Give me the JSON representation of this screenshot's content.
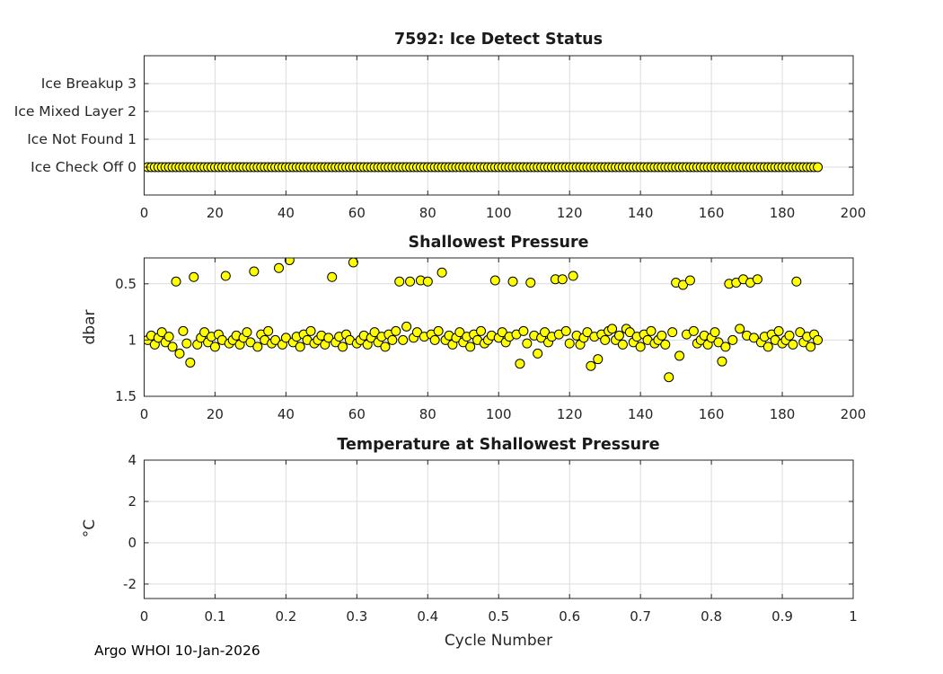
{
  "figure": {
    "background": "#ffffff",
    "footer": "Argo WHOI 10-Jan-2026",
    "marker_fill": "#ffff00",
    "marker_edge": "#000000",
    "grid_color": "#dcdcdc",
    "axis_color": "#262626"
  },
  "chart_data": [
    {
      "id": "ice-detect-status",
      "type": "scatter",
      "title": "7592: Ice Detect Status",
      "xlabel": "",
      "ylabel": "",
      "xlim": [
        0,
        200
      ],
      "xticks": [
        0,
        20,
        40,
        60,
        80,
        100,
        120,
        140,
        160,
        180,
        200
      ],
      "xtick_labels": [
        "0",
        "20",
        "40",
        "60",
        "80",
        "100",
        "120",
        "140",
        "160",
        "180",
        "200"
      ],
      "ylim": [
        -1,
        4
      ],
      "y_reversed": false,
      "yticks": [
        0,
        1,
        2,
        3
      ],
      "ytick_labels": [
        "Ice Check Off 0",
        "Ice Not Found 1",
        "Ice Mixed Layer 2",
        "Ice Breakup 3"
      ],
      "ytick_label_style": "category",
      "grid": true,
      "marker": {
        "shape": "circle",
        "fill": "#ffff00",
        "edge": "#000000",
        "diameter": 11
      },
      "series": [
        {
          "name": "ice_detect_status",
          "x_start": 1,
          "x_step": 1,
          "count": 190,
          "y_const": 0
        }
      ]
    },
    {
      "id": "shallowest-pressure",
      "type": "scatter",
      "title": "Shallowest Pressure",
      "xlabel": "",
      "ylabel": "dbar",
      "xlim": [
        0,
        200
      ],
      "xticks": [
        0,
        20,
        40,
        60,
        80,
        100,
        120,
        140,
        160,
        180,
        200
      ],
      "xtick_labels": [
        "0",
        "20",
        "40",
        "60",
        "80",
        "100",
        "120",
        "140",
        "160",
        "180",
        "200"
      ],
      "ylim": [
        0.27,
        1.5
      ],
      "y_reversed": true,
      "yticks": [
        0.5,
        1,
        1.5
      ],
      "ytick_labels": [
        "0.5",
        "1",
        "1.5"
      ],
      "ytick_label_style": "numeric",
      "grid": true,
      "marker": {
        "shape": "circle",
        "fill": "#ffff00",
        "edge": "#000000",
        "diameter": 11
      },
      "series": [
        {
          "name": "shallowest_pressure_dbar",
          "x_start": 1,
          "x_step": 1,
          "y": [
            1.0,
            0.96,
            1.04,
            0.98,
            0.93,
            1.02,
            0.97,
            1.06,
            0.48,
            1.12,
            0.92,
            1.03,
            1.2,
            0.44,
            1.04,
            0.98,
            0.93,
            1.02,
            0.97,
            1.06,
            0.95,
            1.0,
            0.43,
            1.03,
            1.0,
            0.96,
            1.04,
            0.98,
            0.93,
            1.02,
            0.39,
            1.06,
            0.95,
            1.0,
            0.92,
            1.03,
            1.0,
            0.36,
            1.04,
            0.98,
            0.29,
            1.02,
            0.97,
            1.06,
            0.95,
            1.0,
            0.92,
            1.03,
            1.0,
            0.96,
            1.04,
            0.98,
            0.44,
            1.02,
            0.97,
            1.06,
            0.95,
            1.0,
            0.31,
            1.03,
            1.0,
            0.96,
            1.04,
            0.98,
            0.93,
            1.02,
            0.97,
            1.06,
            0.95,
            1.0,
            0.92,
            0.48,
            1.0,
            0.88,
            0.48,
            0.98,
            0.93,
            0.47,
            0.97,
            0.48,
            0.95,
            1.0,
            0.92,
            0.4,
            1.0,
            0.96,
            1.04,
            0.98,
            0.93,
            1.02,
            0.97,
            1.06,
            0.95,
            1.0,
            0.92,
            1.03,
            1.0,
            0.96,
            0.47,
            0.98,
            0.93,
            1.02,
            0.97,
            0.48,
            0.95,
            1.21,
            0.92,
            1.03,
            0.49,
            0.96,
            1.12,
            0.98,
            0.93,
            1.02,
            0.97,
            0.46,
            0.95,
            0.46,
            0.92,
            1.03,
            0.43,
            0.96,
            1.04,
            0.98,
            0.93,
            1.23,
            0.97,
            1.17,
            0.95,
            1.0,
            0.92,
            0.9,
            1.0,
            0.96,
            1.04,
            0.9,
            0.93,
            1.02,
            0.97,
            1.06,
            0.95,
            1.0,
            0.92,
            1.03,
            1.0,
            0.96,
            1.04,
            1.33,
            0.93,
            0.49,
            1.14,
            0.51,
            0.95,
            0.47,
            0.92,
            1.03,
            1.0,
            0.96,
            1.04,
            0.98,
            0.93,
            1.02,
            1.19,
            1.06,
            0.5,
            1.0,
            0.49,
            0.9,
            0.46,
            0.96,
            0.49,
            0.98,
            0.46,
            1.02,
            0.97,
            1.06,
            0.95,
            1.0,
            0.92,
            1.03,
            1.0,
            0.96,
            1.04,
            0.48,
            0.93,
            1.02,
            0.97,
            1.06,
            0.95,
            1.0
          ]
        }
      ]
    },
    {
      "id": "temperature-at-shallowest-pressure",
      "type": "scatter",
      "title": "Temperature at Shallowest Pressure",
      "xlabel": "Cycle Number",
      "ylabel": "°C",
      "xlim": [
        0,
        1
      ],
      "xticks": [
        0,
        0.1,
        0.2,
        0.3,
        0.4,
        0.5,
        0.6,
        0.7,
        0.8,
        0.9,
        1
      ],
      "xtick_labels": [
        "0",
        "0.1",
        "0.2",
        "0.3",
        "0.4",
        "0.5",
        "0.6",
        "0.7",
        "0.8",
        "0.9",
        "1"
      ],
      "ylim": [
        -2.7,
        4
      ],
      "y_reversed": false,
      "yticks": [
        -2,
        0,
        2,
        4
      ],
      "ytick_labels": [
        "-2",
        "0",
        "2",
        "4"
      ],
      "ytick_label_style": "numeric",
      "grid": true,
      "marker": {
        "shape": "circle",
        "fill": "#ffff00",
        "edge": "#000000",
        "diameter": 11
      },
      "series": []
    }
  ]
}
